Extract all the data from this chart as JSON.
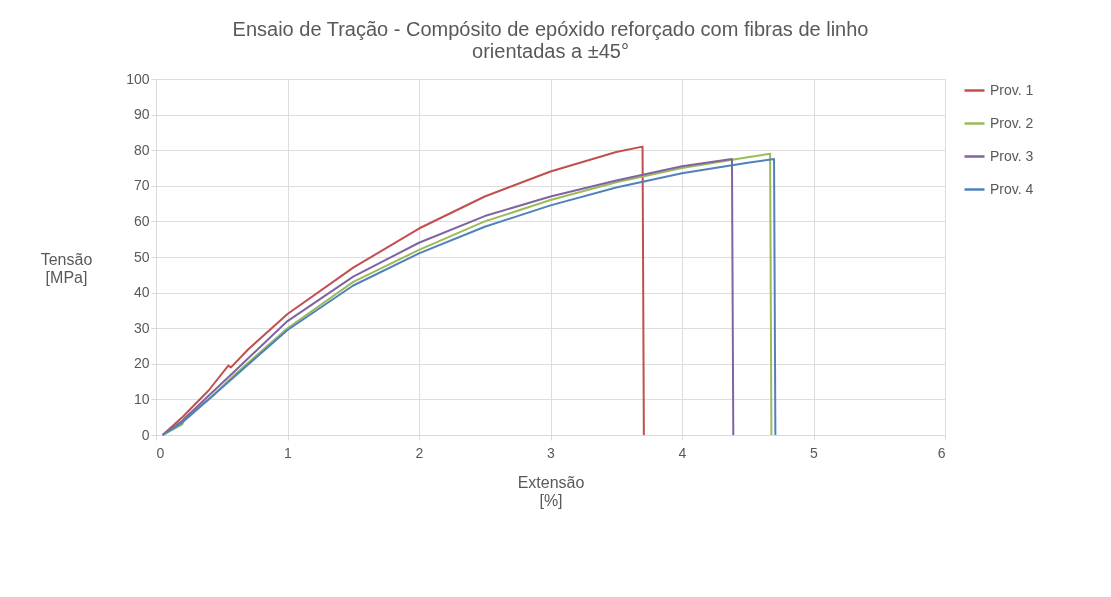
{
  "chart_data": {
    "type": "line",
    "title": "Ensaio de Tração - Compósito de epóxido reforçado com fibras de linho orientadas a ±45°",
    "xlabel": "Extensão [%]",
    "ylabel": "Tensão [MPa]",
    "xlim": [
      0,
      6
    ],
    "xticks": [
      0,
      1,
      2,
      3,
      4,
      5,
      6
    ],
    "ylim": [
      0,
      100
    ],
    "yticks": [
      0,
      10,
      20,
      30,
      40,
      50,
      60,
      70,
      80,
      90,
      100
    ],
    "grid": true,
    "legend": "right",
    "marker": "none",
    "line_style": "solid",
    "series": [
      {
        "name": "Prov. 1",
        "color": "#c0504d",
        "x": [
          0.05,
          0.2,
          0.4,
          0.55,
          0.57,
          0.7,
          1.0,
          1.5,
          2.0,
          2.5,
          3.0,
          3.5,
          3.7,
          3.71
        ],
        "values": [
          0,
          5,
          12.5,
          19.5,
          19,
          24,
          34,
          47,
          58,
          67,
          74,
          79.5,
          81,
          0
        ]
      },
      {
        "name": "Prov. 2",
        "color": "#9bbb59",
        "x": [
          0.05,
          0.2,
          0.22,
          0.4,
          0.6,
          1.0,
          1.5,
          2.0,
          2.5,
          3.0,
          3.5,
          4.0,
          4.5,
          4.67,
          4.68
        ],
        "values": [
          0,
          3,
          5,
          10,
          17,
          30,
          43,
          52,
          60,
          66,
          71,
          75,
          78,
          79,
          0
        ]
      },
      {
        "name": "Prov. 3",
        "color": "#8064a2",
        "x": [
          0.05,
          0.2,
          0.4,
          0.6,
          1.0,
          1.5,
          2.0,
          2.5,
          3.0,
          3.5,
          4.0,
          4.38,
          4.39
        ],
        "values": [
          0,
          4,
          11,
          18,
          32,
          44.5,
          54,
          61.5,
          67,
          71.5,
          75.5,
          77.5,
          0
        ]
      },
      {
        "name": "Prov. 4",
        "color": "#4f81bd",
        "x": [
          0.05,
          0.2,
          0.4,
          0.6,
          1.0,
          1.5,
          2.0,
          2.5,
          3.0,
          3.5,
          4.0,
          4.5,
          4.7,
          4.71
        ],
        "values": [
          0,
          3.5,
          10,
          16.5,
          29.5,
          42,
          51,
          58.5,
          64.5,
          69.5,
          73.5,
          76.5,
          77.5,
          0
        ]
      }
    ]
  }
}
